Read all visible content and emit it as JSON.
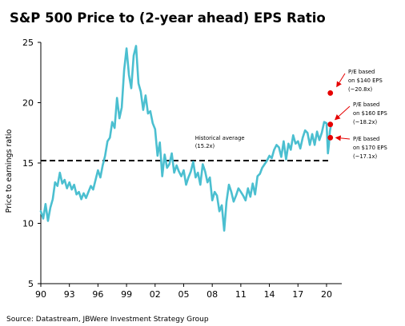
{
  "chart_data": {
    "type": "line",
    "title": "S&P 500 Price to (2-year ahead) EPS Ratio",
    "ylabel": "Price to earnings ratio",
    "xlabel": "",
    "source": "Source: Datastream, JBWere Investment Strategy Group",
    "ylim": [
      5,
      25
    ],
    "xlim": [
      1990,
      2022
    ],
    "y_ticks": [
      "5",
      "10",
      "15",
      "20",
      "25"
    ],
    "y_tick_values": [
      5,
      10,
      15,
      20,
      25
    ],
    "x_ticks": [
      "90",
      "93",
      "96",
      "99",
      "02",
      "05",
      "08",
      "11",
      "14",
      "17",
      "20"
    ],
    "x_tick_values": [
      1990,
      1993,
      1996,
      1999,
      2002,
      2005,
      2008,
      2011,
      2014,
      2017,
      2020
    ],
    "series": [
      {
        "color": "#4bbfd0",
        "x": [
          1990.0,
          1990.25,
          1990.5,
          1990.75,
          1991.0,
          1991.25,
          1991.5,
          1991.75,
          1992.0,
          1992.25,
          1992.5,
          1992.75,
          1993.0,
          1993.25,
          1993.5,
          1993.75,
          1994.0,
          1994.25,
          1994.5,
          1994.75,
          1995.0,
          1995.25,
          1995.5,
          1995.75,
          1996.0,
          1996.25,
          1996.5,
          1996.75,
          1997.0,
          1997.25,
          1997.5,
          1997.75,
          1998.0,
          1998.25,
          1998.5,
          1998.75,
          1999.0,
          1999.25,
          1999.5,
          1999.75,
          2000.0,
          2000.25,
          2000.5,
          2000.75,
          2001.0,
          2001.25,
          2001.5,
          2001.75,
          2002.0,
          2002.25,
          2002.5,
          2002.75,
          2003.0,
          2003.25,
          2003.5,
          2003.75,
          2004.0,
          2004.25,
          2004.5,
          2004.75,
          2005.0,
          2005.25,
          2005.5,
          2005.75,
          2006.0,
          2006.25,
          2006.5,
          2006.75,
          2007.0,
          2007.25,
          2007.5,
          2007.75,
          2008.0,
          2008.25,
          2008.5,
          2008.75,
          2009.0,
          2009.25,
          2009.5,
          2009.75,
          2010.0,
          2010.25,
          2010.5,
          2010.75,
          2011.0,
          2011.25,
          2011.5,
          2011.75,
          2012.0,
          2012.25,
          2012.5,
          2012.75,
          2013.0,
          2013.25,
          2013.5,
          2013.75,
          2014.0,
          2014.25,
          2014.5,
          2014.75,
          2015.0,
          2015.25,
          2015.5,
          2015.75,
          2016.0,
          2016.25,
          2016.5,
          2016.75,
          2017.0,
          2017.25,
          2017.5,
          2017.75,
          2018.0,
          2018.25,
          2018.5,
          2018.75,
          2019.0,
          2019.25,
          2019.5,
          2019.75,
          2020.0,
          2020.15,
          2020.25,
          2020.35,
          2020.5
        ],
        "y": [
          11.0,
          10.4,
          11.6,
          10.2,
          11.3,
          12.0,
          13.4,
          13.1,
          14.2,
          13.3,
          13.6,
          12.9,
          13.4,
          12.8,
          13.2,
          12.4,
          12.6,
          12.0,
          12.5,
          12.1,
          12.6,
          13.1,
          12.8,
          13.6,
          14.4,
          13.8,
          14.8,
          15.6,
          16.8,
          17.1,
          18.4,
          17.9,
          20.4,
          18.7,
          19.6,
          22.7,
          24.5,
          22.3,
          21.2,
          23.9,
          24.7,
          21.6,
          20.9,
          19.4,
          20.6,
          19.1,
          19.3,
          18.3,
          17.8,
          15.6,
          16.7,
          13.9,
          15.7,
          14.6,
          14.9,
          15.8,
          14.2,
          14.8,
          14.3,
          13.9,
          14.4,
          13.2,
          13.8,
          14.3,
          15.1,
          13.8,
          14.2,
          13.2,
          14.9,
          14.3,
          13.4,
          13.8,
          11.9,
          12.6,
          12.3,
          11.0,
          11.5,
          9.4,
          11.8,
          13.2,
          12.6,
          11.8,
          12.3,
          12.9,
          12.6,
          12.3,
          11.9,
          12.9,
          12.2,
          13.3,
          12.4,
          13.9,
          14.1,
          14.6,
          14.9,
          15.2,
          15.6,
          15.4,
          16.1,
          16.5,
          16.3,
          15.5,
          16.8,
          15.3,
          16.6,
          16.1,
          17.3,
          16.6,
          16.8,
          16.2,
          17.1,
          17.7,
          17.5,
          16.5,
          17.4,
          16.5,
          17.6,
          16.9,
          17.5,
          18.4,
          18.3,
          15.8,
          16.5,
          17.6,
          18.3
        ]
      }
    ],
    "reference_line": {
      "y": 15.2,
      "style": "dashed",
      "color": "#000000",
      "label_line1": "Historical average",
      "label_line2": "(15.2x)"
    },
    "annotations": [
      {
        "x": 2020.4,
        "y": 20.8,
        "line1": "P/E based",
        "line2": "on $140 EPS",
        "line3": "(~20.8x)"
      },
      {
        "x": 2020.4,
        "y": 18.2,
        "line1": "P/E based",
        "line2": "on $160 EPS",
        "line3": "(~18.2x)"
      },
      {
        "x": 2020.4,
        "y": 17.1,
        "line1": "P/E based",
        "line2": "on $170 EPS",
        "line3": "(~17.1x)"
      }
    ],
    "marker_color": "#e60000",
    "grid": false,
    "legend": "none"
  }
}
